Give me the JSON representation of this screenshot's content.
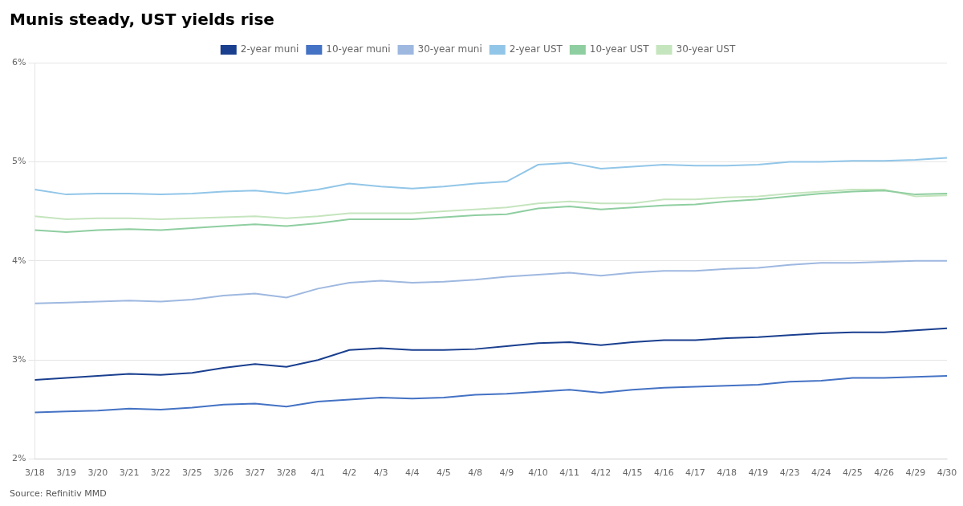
{
  "chart_data": {
    "type": "line",
    "title": "Munis steady, UST yields rise",
    "annotations": [
      "Source: Refinitiv MMD"
    ],
    "categories": [
      "3/18",
      "3/19",
      "3/20",
      "3/21",
      "3/22",
      "3/25",
      "3/26",
      "3/27",
      "3/28",
      "4/1",
      "4/2",
      "4/3",
      "4/4",
      "4/5",
      "4/8",
      "4/9",
      "4/10",
      "4/11",
      "4/12",
      "4/15",
      "4/16",
      "4/17",
      "4/18",
      "4/19",
      "4/23",
      "4/24",
      "4/25",
      "4/26",
      "4/29",
      "4/30"
    ],
    "series": [
      {
        "name": "2-year muni",
        "color": "#1a3f8f",
        "values": [
          2.8,
          2.82,
          2.84,
          2.86,
          2.85,
          2.87,
          2.92,
          2.96,
          2.93,
          3.0,
          3.1,
          3.12,
          3.1,
          3.1,
          3.11,
          3.14,
          3.17,
          3.18,
          3.15,
          3.18,
          3.2,
          3.2,
          3.22,
          3.23,
          3.25,
          3.27,
          3.28,
          3.28,
          3.3,
          3.32
        ]
      },
      {
        "name": "10-year muni",
        "color": "#4472c4",
        "values": [
          2.47,
          2.48,
          2.49,
          2.51,
          2.5,
          2.52,
          2.55,
          2.56,
          2.53,
          2.58,
          2.6,
          2.62,
          2.61,
          2.62,
          2.65,
          2.66,
          2.68,
          2.7,
          2.67,
          2.7,
          2.72,
          2.73,
          2.74,
          2.75,
          2.78,
          2.79,
          2.82,
          2.82,
          2.83,
          2.84
        ]
      },
      {
        "name": "30-year muni",
        "color": "#9eb8e0",
        "values": [
          3.57,
          3.58,
          3.59,
          3.6,
          3.59,
          3.61,
          3.65,
          3.67,
          3.63,
          3.72,
          3.78,
          3.8,
          3.78,
          3.79,
          3.81,
          3.84,
          3.86,
          3.88,
          3.85,
          3.88,
          3.9,
          3.9,
          3.92,
          3.93,
          3.96,
          3.98,
          3.98,
          3.99,
          4.0,
          4.0
        ]
      },
      {
        "name": "2-year UST",
        "color": "#92c6e8",
        "values": [
          4.72,
          4.67,
          4.68,
          4.68,
          4.67,
          4.68,
          4.7,
          4.71,
          4.68,
          4.72,
          4.78,
          4.75,
          4.73,
          4.75,
          4.78,
          4.8,
          4.97,
          4.99,
          4.93,
          4.95,
          4.97,
          4.96,
          4.96,
          4.97,
          5.0,
          5.0,
          5.01,
          5.01,
          5.02,
          5.04
        ]
      },
      {
        "name": "10-year UST",
        "color": "#8fcea0",
        "values": [
          4.31,
          4.29,
          4.31,
          4.32,
          4.31,
          4.33,
          4.35,
          4.37,
          4.35,
          4.38,
          4.42,
          4.42,
          4.42,
          4.44,
          4.46,
          4.47,
          4.53,
          4.55,
          4.52,
          4.54,
          4.56,
          4.57,
          4.6,
          4.62,
          4.65,
          4.68,
          4.7,
          4.71,
          4.67,
          4.68
        ]
      },
      {
        "name": "30-year UST",
        "color": "#c5e5be",
        "values": [
          4.45,
          4.42,
          4.43,
          4.43,
          4.42,
          4.43,
          4.44,
          4.45,
          4.43,
          4.45,
          4.48,
          4.48,
          4.48,
          4.5,
          4.52,
          4.54,
          4.58,
          4.6,
          4.58,
          4.58,
          4.62,
          4.62,
          4.64,
          4.65,
          4.68,
          4.7,
          4.72,
          4.72,
          4.65,
          4.66
        ]
      }
    ],
    "ylim": [
      2.0,
      6.0
    ],
    "yticks": [
      {
        "value": 2.0,
        "label": "2%"
      },
      {
        "value": 3.0,
        "label": "3%"
      },
      {
        "value": 4.0,
        "label": "4%"
      },
      {
        "value": 5.0,
        "label": "5%"
      },
      {
        "value": 6.0,
        "label": "6%"
      }
    ],
    "grid": "y",
    "legend": "top"
  }
}
